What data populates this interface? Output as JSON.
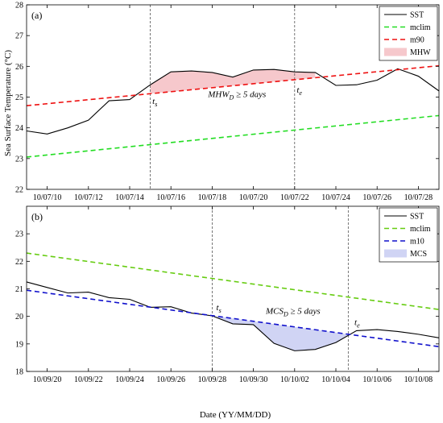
{
  "figure": {
    "ylabel": "Sea Surface Temperature (°C)",
    "xlabel": "Date (YY/MM/DD)"
  },
  "chart_data": [
    {
      "type": "line",
      "panel_label": "(a)",
      "x_start": "10/07/09",
      "xlim": [
        0,
        20
      ],
      "ylim": [
        22,
        28
      ],
      "yticks": [
        22,
        23,
        24,
        25,
        26,
        27,
        28
      ],
      "xticks": [
        {
          "x": 1,
          "label": "10/07/10"
        },
        {
          "x": 3,
          "label": "10/07/12"
        },
        {
          "x": 5,
          "label": "10/07/14"
        },
        {
          "x": 7,
          "label": "10/07/16"
        },
        {
          "x": 9,
          "label": "10/07/18"
        },
        {
          "x": 11,
          "label": "10/07/20"
        },
        {
          "x": 13,
          "label": "10/07/22"
        },
        {
          "x": 15,
          "label": "10/07/24"
        },
        {
          "x": 17,
          "label": "10/07/26"
        },
        {
          "x": 19,
          "label": "10/07/28"
        }
      ],
      "series": [
        {
          "name": "SST",
          "style": "solid",
          "color": "#000000",
          "x": [
            0,
            1,
            2,
            3,
            4,
            5,
            6,
            7,
            8,
            9,
            10,
            11,
            12,
            13,
            14,
            15,
            16,
            17,
            18,
            19,
            20
          ],
          "values": [
            23.9,
            23.8,
            24.0,
            24.25,
            24.88,
            24.92,
            25.4,
            25.82,
            25.85,
            25.8,
            25.65,
            25.88,
            25.9,
            25.82,
            25.8,
            25.38,
            25.4,
            25.55,
            25.92,
            25.68,
            25.2
          ]
        },
        {
          "name": "mclim",
          "style": "dashed",
          "color": "#22dd22",
          "x": [
            0,
            20
          ],
          "values": [
            23.05,
            24.4
          ]
        },
        {
          "name": "m90",
          "style": "dashed",
          "color": "#ee1111",
          "x": [
            0,
            20
          ],
          "values": [
            24.72,
            26.02
          ]
        }
      ],
      "shade": {
        "name": "MHW",
        "color": "#f6c8cc",
        "from": 6,
        "to": 14,
        "between": [
          "SST",
          "m90"
        ]
      },
      "event_lines": [
        6,
        13
      ],
      "annotations": [
        {
          "text": "MHW",
          "sub": "D",
          "suffix": " ≥ 5 days",
          "x": 8.8,
          "y": 25.0
        },
        {
          "text": "t",
          "sub": "s",
          "x": 6.1,
          "y": 24.78
        },
        {
          "text": "t",
          "sub": "e",
          "x": 13.1,
          "y": 25.15
        }
      ],
      "legend": {
        "position": "top-right",
        "entries": [
          {
            "label": "SST",
            "kind": "line",
            "style": "solid",
            "color": "#000000"
          },
          {
            "label": "mclim",
            "kind": "line",
            "style": "dashed",
            "color": "#22dd22"
          },
          {
            "label": "m90",
            "kind": "line",
            "style": "dashed",
            "color": "#ee1111"
          },
          {
            "label": "MHW",
            "kind": "patch",
            "color": "#f6c8cc"
          }
        ]
      }
    },
    {
      "type": "line",
      "panel_label": "(b)",
      "x_start": "10/09/19",
      "xlim": [
        0,
        20
      ],
      "ylim": [
        18,
        24
      ],
      "yticks": [
        18,
        19,
        20,
        21,
        22,
        23
      ],
      "xticks": [
        {
          "x": 1,
          "label": "10/09/20"
        },
        {
          "x": 3,
          "label": "10/09/22"
        },
        {
          "x": 5,
          "label": "10/09/24"
        },
        {
          "x": 7,
          "label": "10/09/26"
        },
        {
          "x": 9,
          "label": "10/09/28"
        },
        {
          "x": 11,
          "label": "10/09/30"
        },
        {
          "x": 13,
          "label": "10/10/02"
        },
        {
          "x": 15,
          "label": "10/10/04"
        },
        {
          "x": 17,
          "label": "10/10/06"
        },
        {
          "x": 19,
          "label": "10/10/08"
        }
      ],
      "series": [
        {
          "name": "SST",
          "style": "solid",
          "color": "#000000",
          "x": [
            0,
            1,
            2,
            3,
            4,
            5,
            6,
            7,
            8,
            9,
            10,
            11,
            12,
            13,
            14,
            15,
            16,
            17,
            18,
            19,
            20
          ],
          "values": [
            21.25,
            21.05,
            20.85,
            20.88,
            20.68,
            20.62,
            20.33,
            20.35,
            20.12,
            20.02,
            19.73,
            19.7,
            19.02,
            18.75,
            18.8,
            19.05,
            19.48,
            19.52,
            19.45,
            19.35,
            19.22
          ]
        },
        {
          "name": "mclim",
          "style": "dashed",
          "color": "#66cc11",
          "x": [
            0,
            20
          ],
          "values": [
            22.3,
            20.25
          ]
        },
        {
          "name": "m10",
          "style": "dashed",
          "color": "#1111cc",
          "x": [
            0,
            20
          ],
          "values": [
            20.95,
            18.9
          ]
        }
      ],
      "shade": {
        "name": "MCS",
        "color": "#d0d4f4",
        "from": 9,
        "to": 15.6,
        "between": [
          "m10",
          "SST"
        ]
      },
      "event_lines": [
        9,
        15.6
      ],
      "annotations": [
        {
          "text": "MCS",
          "sub": "D",
          "suffix": " ≥ 5 days",
          "x": 11.6,
          "y": 20.1
        },
        {
          "text": "t",
          "sub": "s",
          "x": 9.2,
          "y": 20.22
        },
        {
          "text": "t",
          "sub": "e",
          "x": 15.9,
          "y": 19.68
        }
      ],
      "legend": {
        "position": "top-right",
        "entries": [
          {
            "label": "SST",
            "kind": "line",
            "style": "solid",
            "color": "#000000"
          },
          {
            "label": "mclim",
            "kind": "line",
            "style": "dashed",
            "color": "#66cc11"
          },
          {
            "label": "m10",
            "kind": "line",
            "style": "dashed",
            "color": "#1111cc"
          },
          {
            "label": "MCS",
            "kind": "patch",
            "color": "#d0d4f4"
          }
        ]
      }
    }
  ]
}
